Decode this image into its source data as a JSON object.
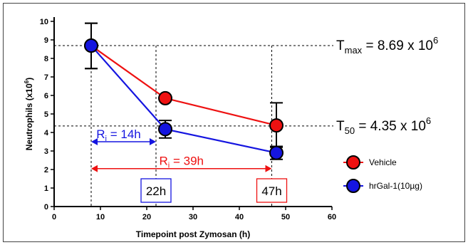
{
  "chart_data": {
    "type": "line",
    "title": "",
    "xlabel": "Timepoint post Zymosan (h)",
    "ylabel_main": "Neutrophils (x10",
    "ylabel_sup": "6",
    "ylabel_tail": ")",
    "xlim": [
      0,
      60
    ],
    "ylim": [
      0,
      10
    ],
    "x_ticks": [
      "0",
      "10",
      "20",
      "30",
      "40",
      "50",
      "60"
    ],
    "y_ticks": [
      "0",
      "1",
      "2",
      "3",
      "4",
      "5",
      "6",
      "7",
      "8",
      "9",
      "10"
    ],
    "grid": false,
    "legend_position": "right",
    "series": [
      {
        "name": "Vehicle",
        "color": "#ee1111",
        "x": [
          8,
          24,
          48
        ],
        "y": [
          8.69,
          5.85,
          4.38
        ],
        "err_low": [
          7.45,
          5.75,
          3.2
        ],
        "err_high": [
          9.9,
          5.95,
          5.6
        ]
      },
      {
        "name": "hrGal-1(10µg)",
        "color": "#1515e0",
        "x": [
          8,
          24,
          48
        ],
        "y": [
          8.69,
          4.18,
          2.9
        ],
        "err_low": [
          7.45,
          3.7,
          2.55
        ],
        "err_high": [
          9.9,
          4.65,
          3.25
        ]
      }
    ],
    "annotations": {
      "tmax": {
        "value": 8.69,
        "prefix": "T",
        "sub": "max",
        "eq": " = 8.69 x 10",
        "sup": "6"
      },
      "t50": {
        "value": 4.35,
        "prefix": "T",
        "sub": "50",
        "eq": " = 4.35 x 10",
        "sup": "6"
      },
      "ri_hrgal": {
        "from": 8,
        "to": 22,
        "y": 3.5,
        "prefix": "R",
        "sub": "i",
        "eq": " = 14h",
        "color": "#1515e0"
      },
      "ri_vehicle": {
        "from": 8,
        "to": 47,
        "y": 2.05,
        "prefix": "R",
        "sub": "i",
        "eq": " = 39h",
        "color": "#ee1111"
      },
      "box_hrgal": {
        "x": 22,
        "label": "22h",
        "color": "#1515e0"
      },
      "box_vehicle": {
        "x": 47,
        "label": "47h",
        "color": "#ee1111"
      },
      "vertical_guides_x": [
        8,
        22,
        47
      ]
    }
  }
}
